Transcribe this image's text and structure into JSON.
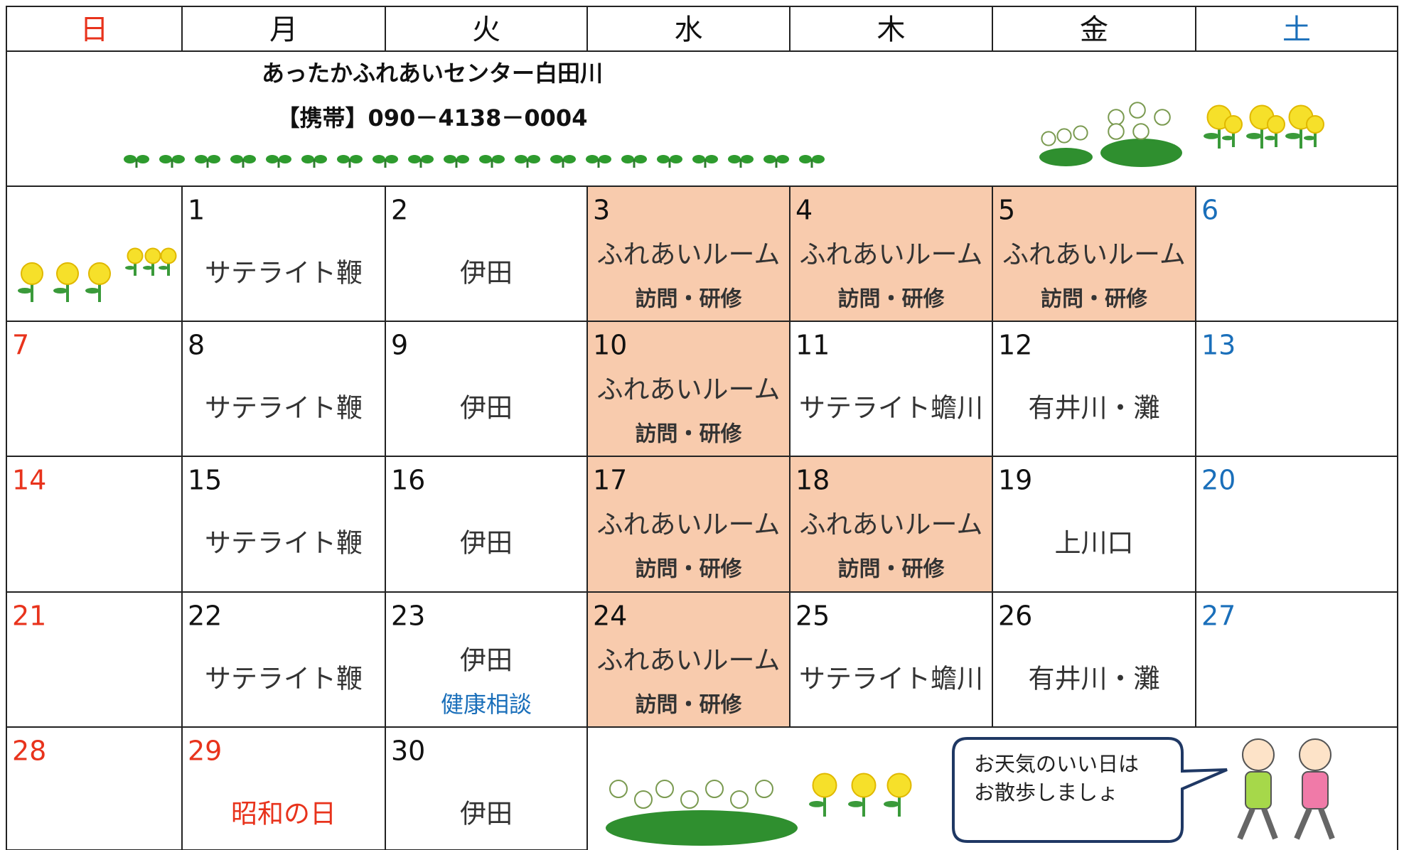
{
  "header": {
    "days": [
      "日",
      "月",
      "火",
      "水",
      "木",
      "金",
      "土"
    ]
  },
  "sunday_color": "#e8331c",
  "saturday_color": "#1a6fba",
  "highlight_color": "#f8cbad",
  "info": {
    "title": "あったかふれあいセンター白田川",
    "phone": "【携帯】090－4138－0004"
  },
  "weeks": [
    [
      null,
      {
        "day": 1,
        "lines": [
          "サテライト鞭"
        ]
      },
      {
        "day": 2,
        "lines": [
          "伊田"
        ]
      },
      {
        "day": 3,
        "lines": [
          "ふれあいルーム",
          "訪問・研修"
        ],
        "highlight": true
      },
      {
        "day": 4,
        "lines": [
          "ふれあいルーム",
          "訪問・研修"
        ],
        "highlight": true
      },
      {
        "day": 5,
        "lines": [
          "ふれあいルーム",
          "訪問・研修"
        ],
        "highlight": true
      },
      {
        "day": 6
      }
    ],
    [
      {
        "day": 7
      },
      {
        "day": 8,
        "lines": [
          "サテライト鞭"
        ]
      },
      {
        "day": 9,
        "lines": [
          "伊田"
        ]
      },
      {
        "day": 10,
        "lines": [
          "ふれあいルーム",
          "訪問・研修"
        ],
        "highlight": true
      },
      {
        "day": 11,
        "lines": [
          "サテライト蟾川"
        ]
      },
      {
        "day": 12,
        "lines": [
          "有井川・灘"
        ]
      },
      {
        "day": 13
      }
    ],
    [
      {
        "day": 14
      },
      {
        "day": 15,
        "lines": [
          "サテライト鞭"
        ]
      },
      {
        "day": 16,
        "lines": [
          "伊田"
        ]
      },
      {
        "day": 17,
        "lines": [
          "ふれあいルーム",
          "訪問・研修"
        ],
        "highlight": true
      },
      {
        "day": 18,
        "lines": [
          "ふれあいルーム",
          "訪問・研修"
        ],
        "highlight": true
      },
      {
        "day": 19,
        "lines": [
          "上川口"
        ]
      },
      {
        "day": 20
      }
    ],
    [
      {
        "day": 21
      },
      {
        "day": 22,
        "lines": [
          "サテライト鞭"
        ]
      },
      {
        "day": 23,
        "lines": [
          "伊田",
          "健康相談"
        ],
        "line_color": "#1a6fba"
      },
      {
        "day": 24,
        "lines": [
          "ふれあいルーム",
          "訪問・研修"
        ],
        "highlight": true
      },
      {
        "day": 25,
        "lines": [
          "サテライト蟾川"
        ]
      },
      {
        "day": 26,
        "lines": [
          "有井川・灘"
        ]
      },
      {
        "day": 27
      }
    ],
    [
      {
        "day": 28
      },
      {
        "day": 29,
        "lines": [
          "昭和の日"
        ],
        "holiday": true
      },
      {
        "day": 30,
        "lines": [
          "伊田"
        ]
      },
      null,
      null,
      null,
      null
    ]
  ],
  "bubble": [
    "お天気のいい日は",
    "お散歩しましょ"
  ]
}
